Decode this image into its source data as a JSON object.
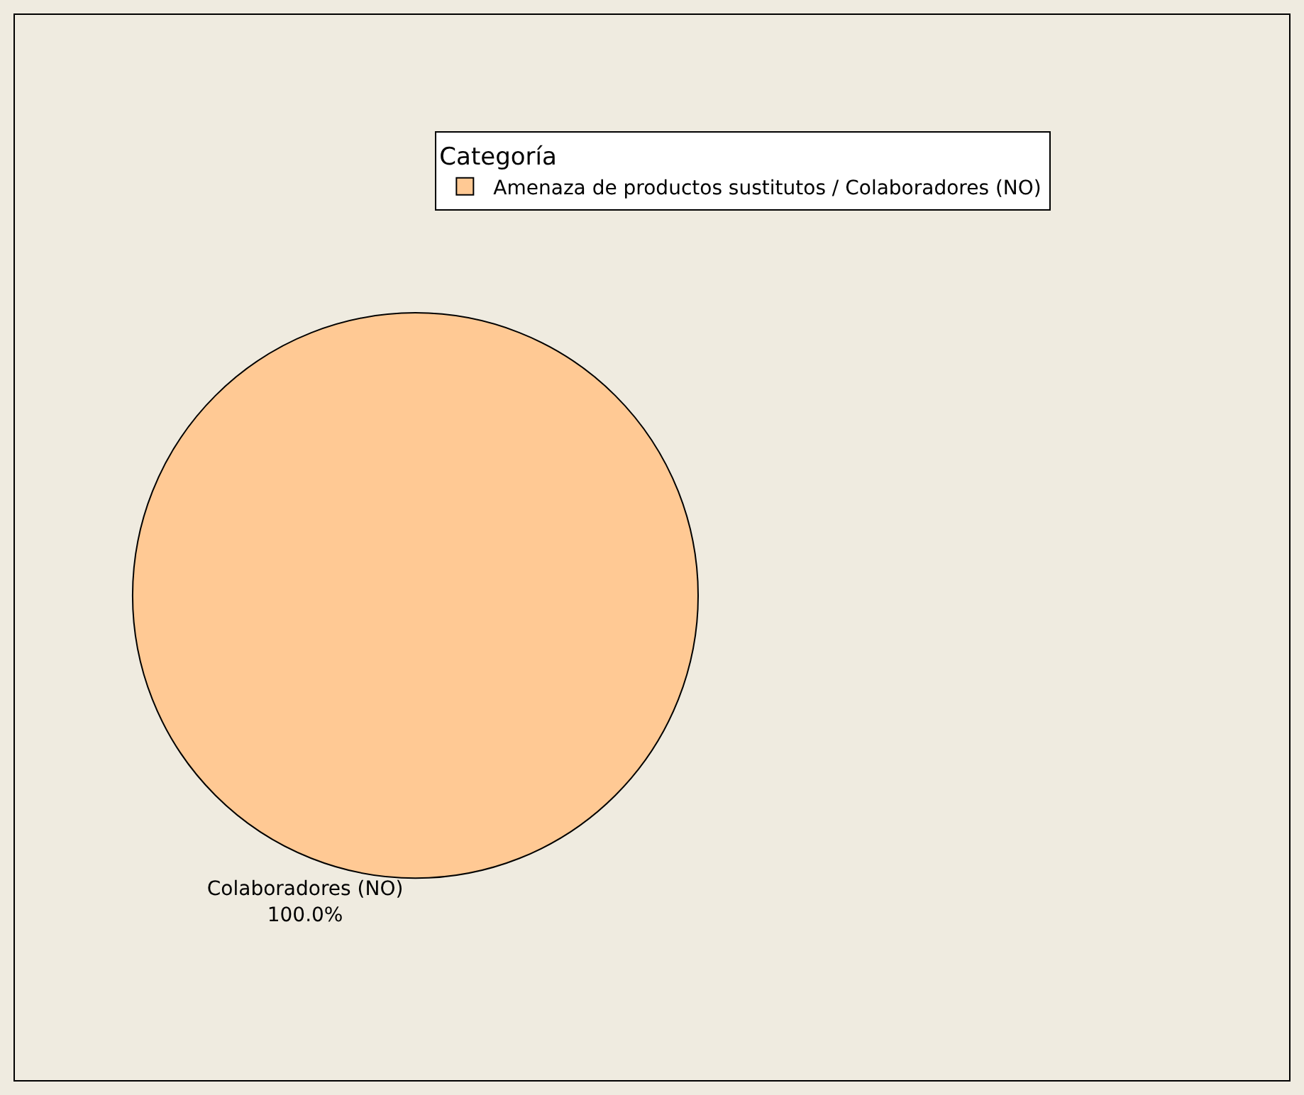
{
  "chart_data": {
    "type": "pie",
    "legend_title": "Categoría",
    "categories": [
      "Amenaza de productos sustitutos / Colaboradores (NO)"
    ],
    "values": [
      100
    ],
    "colors": [
      "#ffc994"
    ],
    "value_labels": [
      "Colaboradores (NO)\n100.0%"
    ],
    "legend": "top right"
  }
}
